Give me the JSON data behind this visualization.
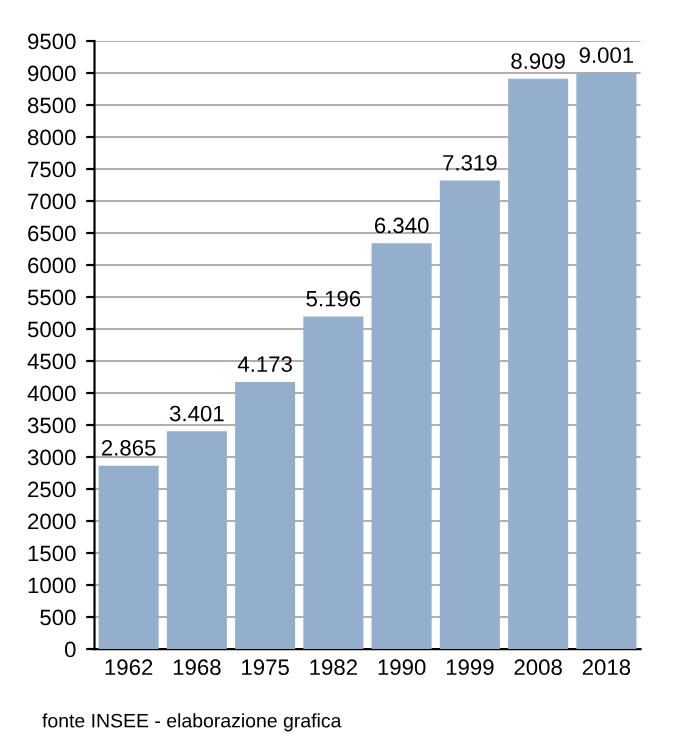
{
  "chart_data": {
    "type": "bar",
    "categories": [
      "1962",
      "1968",
      "1975",
      "1982",
      "1990",
      "1999",
      "2008",
      "2018"
    ],
    "values": [
      2865,
      3401,
      4173,
      5196,
      6340,
      7319,
      8909,
      9001
    ],
    "value_labels": [
      "2.865",
      "3.401",
      "4.173",
      "5.196",
      "6.340",
      "7.319",
      "8.909",
      "9.001"
    ],
    "color": "#94afcc",
    "ylim": [
      0,
      9500
    ],
    "yticks": [
      0,
      500,
      1000,
      1500,
      2000,
      2500,
      3000,
      3500,
      4000,
      4500,
      5000,
      5500,
      6000,
      6500,
      7000,
      7500,
      8000,
      8500,
      9000,
      9500
    ],
    "grid": "y",
    "annotations": [
      "fonte INSEE - elaborazione grafica"
    ]
  }
}
